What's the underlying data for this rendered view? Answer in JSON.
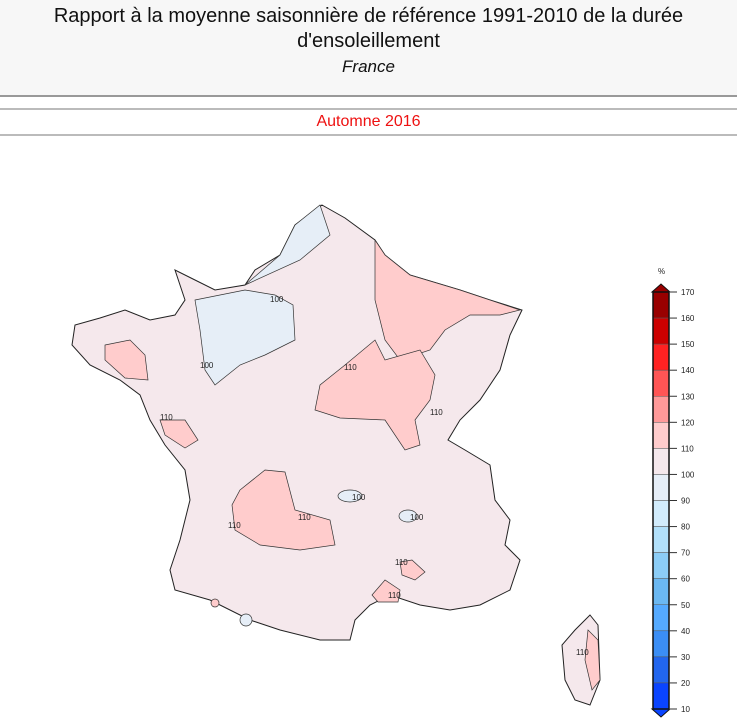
{
  "header": {
    "title": "Rapport à la moyenne saisonnière de référence 1991-2010 de la durée d'ensoleillement",
    "region": "France"
  },
  "period": "Automne 2016",
  "map": {
    "contour_labels": [
      "100",
      "100",
      "110",
      "110",
      "110",
      "110",
      "110",
      "100",
      "100",
      "110",
      "110",
      "110"
    ],
    "legend": {
      "unit": "%",
      "ticks": [
        "170",
        "160",
        "150",
        "140",
        "130",
        "120",
        "110",
        "100",
        "90",
        "80",
        "70",
        "60",
        "50",
        "40",
        "30",
        "20",
        "10"
      ],
      "colors": [
        "#990000",
        "#cc0000",
        "#ff2222",
        "#ff5555",
        "#ff9999",
        "#ffcccc",
        "#f5e8ec",
        "#e6eef7",
        "#d2ecfc",
        "#b2e0fa",
        "#8ccdf6",
        "#6bb8f2",
        "#55aaff",
        "#3b8ef5",
        "#2266ee",
        "#0a44ff"
      ]
    }
  }
}
